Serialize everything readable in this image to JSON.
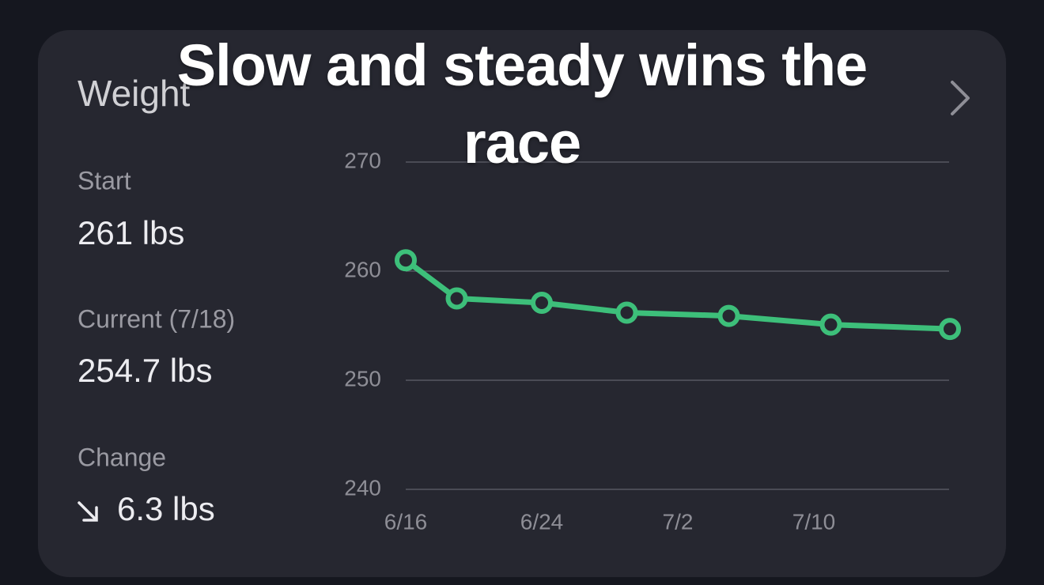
{
  "caption": "Slow and steady wins the race",
  "card": {
    "title": "Weight",
    "stats": [
      {
        "label": "Start",
        "value": "261 lbs"
      },
      {
        "label": "Current (7/18)",
        "value": "254.7 lbs"
      },
      {
        "label": "Change",
        "value": "6.3 lbs"
      }
    ]
  },
  "chart_data": {
    "type": "line",
    "x": [
      "6/16",
      "6/19",
      "6/24",
      "6/29",
      "7/5",
      "7/11",
      "7/18"
    ],
    "series": [
      {
        "name": "Weight",
        "color": "#3dbf7a",
        "values": [
          261,
          257.5,
          257.1,
          256.2,
          255.9,
          255.1,
          254.7
        ]
      }
    ],
    "xlim": [
      "6/16",
      "7/18"
    ],
    "xticks": [
      "6/16",
      "6/24",
      "7/2",
      "7/10"
    ],
    "ylim": [
      240,
      270
    ],
    "yticks": [
      240,
      250,
      260,
      270
    ],
    "grid": true
  }
}
